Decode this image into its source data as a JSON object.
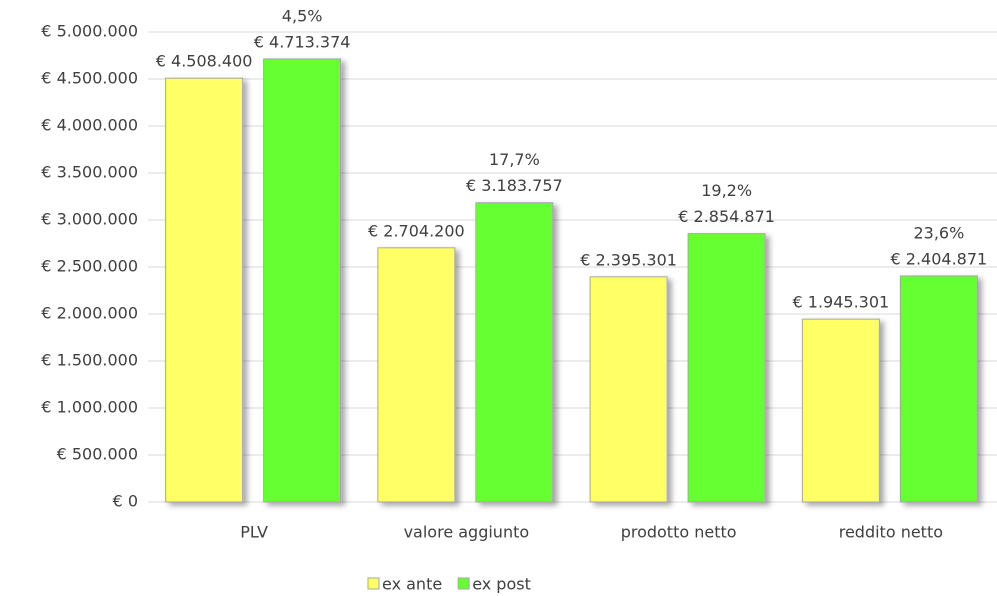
{
  "chart_data": {
    "type": "bar",
    "categories": [
      "PLV",
      "valore aggiunto",
      "prodotto netto",
      "reddito netto"
    ],
    "series": [
      {
        "name": "ex ante",
        "color": "#ffff66",
        "values": [
          4508400,
          2704200,
          2395301,
          1945301
        ],
        "value_labels": [
          "€ 4.508.400",
          "€ 2.704.200",
          "€ 2.395.301",
          "€ 1.945.301"
        ]
      },
      {
        "name": "ex post",
        "color": "#66ff33",
        "values": [
          4713374,
          3183757,
          2854871,
          2404871
        ],
        "value_labels": [
          "€ 4.713.374",
          "€ 3.183.757",
          "€ 2.854.871",
          "€ 2.404.871"
        ]
      }
    ],
    "annotations": [
      "4,5%",
      "17,7%",
      "19,2%",
      "23,6%"
    ],
    "ylim": [
      0,
      5000000
    ],
    "yticks": [
      {
        "value": 0,
        "label": "€ 0"
      },
      {
        "value": 500000,
        "label": "€ 500.000"
      },
      {
        "value": 1000000,
        "label": "€ 1.000.000"
      },
      {
        "value": 1500000,
        "label": "€ 1.500.000"
      },
      {
        "value": 2000000,
        "label": "€ 2.000.000"
      },
      {
        "value": 2500000,
        "label": "€ 2.500.000"
      },
      {
        "value": 3000000,
        "label": "€ 3.000.000"
      },
      {
        "value": 3500000,
        "label": "€ 3.500.000"
      },
      {
        "value": 4000000,
        "label": "€ 4.000.000"
      },
      {
        "value": 4500000,
        "label": "€ 4.500.000"
      },
      {
        "value": 5000000,
        "label": "€ 5.000.000"
      }
    ],
    "grid": true,
    "legend": "bottom"
  }
}
